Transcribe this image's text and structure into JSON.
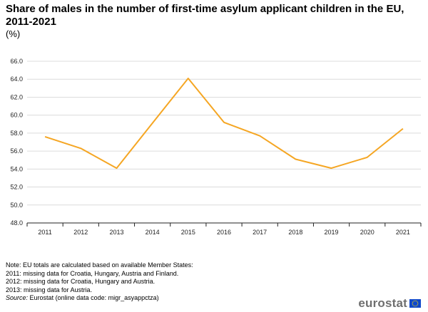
{
  "header": {
    "title": "Share of males in the number of first-time asylum applicant children in the EU, 2011-2021",
    "subtitle": "(%)"
  },
  "chart_data": {
    "type": "line",
    "title": "Share of males in the number of first-time asylum applicant children in the EU, 2011-2021",
    "subtitle": "(%)",
    "categories": [
      "2011",
      "2012",
      "2013",
      "2014",
      "2015",
      "2016",
      "2017",
      "2018",
      "2019",
      "2020",
      "2021"
    ],
    "series": [
      {
        "values": [
          57.6,
          56.3,
          54.1,
          59.1,
          64.1,
          59.2,
          57.7,
          55.1,
          54.1,
          55.3,
          58.5
        ],
        "color": "#f5a623"
      }
    ],
    "ylim": [
      48.0,
      66.0
    ],
    "yticks": [
      "48.0",
      "50.0",
      "52.0",
      "54.0",
      "56.0",
      "58.0",
      "60.0",
      "62.0",
      "64.0",
      "66.0"
    ],
    "grid": true,
    "legend": "none"
  },
  "notes": [
    "Note: EU totals are calculated based on available Member States:",
    "2011: missing data for Croatia, Hungary, Austria and Finland.",
    "2012: missing data for Croatia, Hungary and Austria.",
    "2013: missing data for Austria."
  ],
  "source": {
    "label": "Source:",
    "text": "Eurostat (online data code: migr_asyappctza)"
  },
  "logo": {
    "text": "eurostat",
    "flag_color": "#0e47cb",
    "star_color": "#ffde00"
  }
}
